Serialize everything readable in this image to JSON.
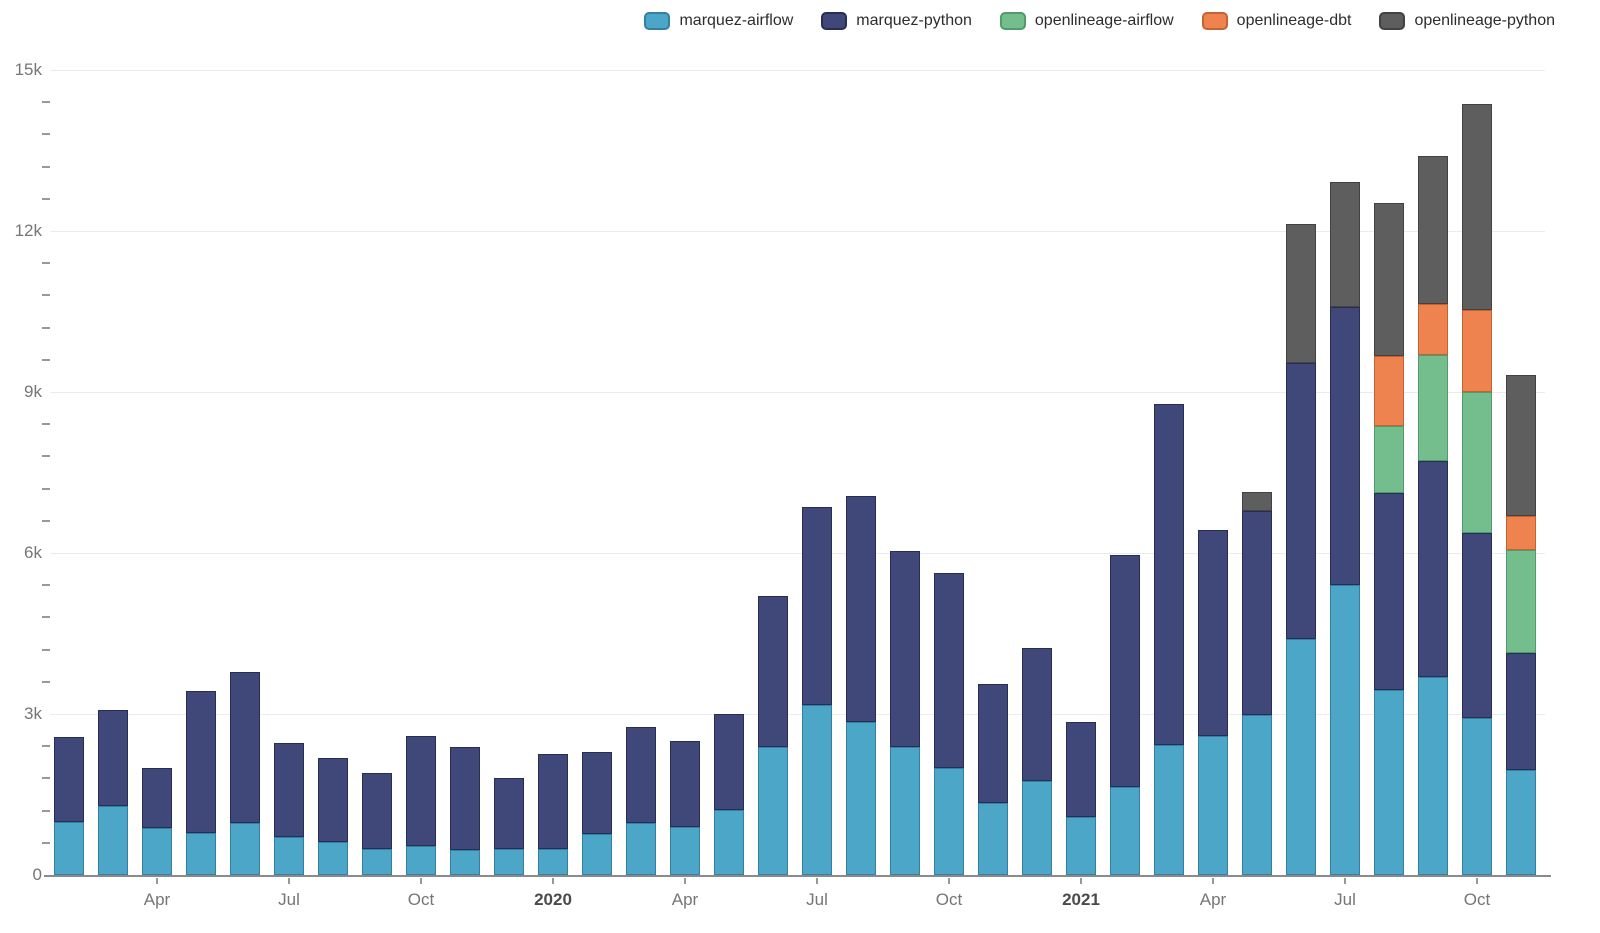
{
  "chart_data": {
    "type": "bar",
    "stacked": true,
    "title": "",
    "xlabel": "",
    "ylabel": "",
    "ylim": [
      0,
      15000
    ],
    "grid": true,
    "legend_position": "top-right",
    "x_months": [
      "2019-02",
      "2019-03",
      "2019-04",
      "2019-05",
      "2019-06",
      "2019-07",
      "2019-08",
      "2019-09",
      "2019-10",
      "2019-11",
      "2019-12",
      "2020-01",
      "2020-02",
      "2020-03",
      "2020-04",
      "2020-05",
      "2020-06",
      "2020-07",
      "2020-08",
      "2020-09",
      "2020-10",
      "2020-11",
      "2020-12",
      "2021-01",
      "2021-02",
      "2021-03",
      "2021-04",
      "2021-05",
      "2021-06",
      "2021-07",
      "2021-08",
      "2021-09",
      "2021-10",
      "2021-11"
    ],
    "x_axis_ticks": [
      {
        "bar_index": 2,
        "label": "Apr",
        "bold": false
      },
      {
        "bar_index": 5,
        "label": "Jul",
        "bold": false
      },
      {
        "bar_index": 8,
        "label": "Oct",
        "bold": false
      },
      {
        "bar_index": 11,
        "label": "2020",
        "bold": true
      },
      {
        "bar_index": 14,
        "label": "Apr",
        "bold": false
      },
      {
        "bar_index": 17,
        "label": "Jul",
        "bold": false
      },
      {
        "bar_index": 20,
        "label": "Oct",
        "bold": false
      },
      {
        "bar_index": 23,
        "label": "2021",
        "bold": true
      },
      {
        "bar_index": 26,
        "label": "Apr",
        "bold": false
      },
      {
        "bar_index": 29,
        "label": "Jul",
        "bold": false
      },
      {
        "bar_index": 32,
        "label": "Oct",
        "bold": false
      }
    ],
    "y_axis": {
      "ticks": [
        {
          "value": 0,
          "label": "0"
        },
        {
          "value": 3000,
          "label": "3k"
        },
        {
          "value": 6000,
          "label": "6k"
        },
        {
          "value": 9000,
          "label": "9k"
        },
        {
          "value": 12000,
          "label": "12k"
        },
        {
          "value": 15000,
          "label": "15k"
        }
      ],
      "minor_tick_step": 600,
      "max": 15000
    },
    "series": [
      {
        "name": "marquez-airflow",
        "color": "#4BA6C8",
        "border_color": "#357FA0",
        "values": [
          990,
          1290,
          880,
          785,
          970,
          710,
          615,
          485,
          540,
          465,
          485,
          485,
          765,
          970,
          895,
          1215,
          2390,
          3170,
          2855,
          2390,
          2000,
          1345,
          1755,
          1080,
          1640,
          2425,
          2595,
          2985,
          4405,
          5410,
          3450,
          3695,
          2930,
          1960
        ]
      },
      {
        "name": "marquez-python",
        "color": "#3F4878",
        "border_color": "#272E54",
        "values": [
          1585,
          1790,
          1120,
          2650,
          2820,
          1755,
          1570,
          1420,
          2055,
          1925,
          1325,
          1775,
          1525,
          1790,
          1605,
          1790,
          2815,
          3680,
          4200,
          3655,
          3620,
          2220,
          2480,
          1775,
          4315,
          6345,
          3825,
          3790,
          5130,
          5170,
          3660,
          4010,
          3450,
          2185
        ]
      },
      {
        "name": "openlineage-airflow",
        "color": "#73BE8C",
        "border_color": "#519A6C",
        "values": [
          0,
          0,
          0,
          0,
          0,
          0,
          0,
          0,
          0,
          0,
          0,
          0,
          0,
          0,
          0,
          0,
          0,
          0,
          0,
          0,
          0,
          0,
          0,
          0,
          0,
          0,
          0,
          0,
          0,
          0,
          1250,
          1980,
          2615,
          1905
        ]
      },
      {
        "name": "openlineage-dbt",
        "color": "#EE8350",
        "border_color": "#C66232",
        "values": [
          0,
          0,
          0,
          0,
          0,
          0,
          0,
          0,
          0,
          0,
          0,
          0,
          0,
          0,
          0,
          0,
          0,
          0,
          0,
          0,
          0,
          0,
          0,
          0,
          0,
          0,
          0,
          0,
          0,
          0,
          1305,
          955,
          1530,
          635
        ]
      },
      {
        "name": "openlineage-python",
        "color": "#5E5E5E",
        "border_color": "#424242",
        "values": [
          0,
          0,
          0,
          0,
          0,
          0,
          0,
          0,
          0,
          0,
          0,
          0,
          0,
          0,
          0,
          0,
          0,
          0,
          0,
          0,
          0,
          0,
          0,
          0,
          0,
          0,
          0,
          355,
          2595,
          2330,
          2855,
          2760,
          3845,
          2630
        ]
      }
    ]
  },
  "colors": {
    "gridline": "#e9ebf3",
    "axis_line": "#8a8a8a",
    "tick_mark": "#999999",
    "tick_label": "#767676",
    "bold_tick_label": "#4a4a4a",
    "legend_text": "#2d2d2d",
    "background": "#ffffff"
  }
}
